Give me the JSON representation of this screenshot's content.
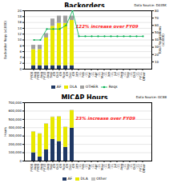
{
  "chart_data": [
    {
      "type": "bar",
      "stacked": true,
      "title": "Backorders",
      "subtitle": "Data Source: D035K",
      "annotations": [
        {
          "text": "122% increase over FY09",
          "color": "#ff2020"
        }
      ],
      "categories": [
        "FY08\nAug",
        "FY09\nAug",
        "FY10\nAug",
        "Sep\n-09",
        "Oct\n-09",
        "Nov\n-09",
        "Dec\n-09",
        "Jan\n-11",
        "Feb\n-11",
        "Mar\n-11",
        "Apr\n-11",
        "May\n-11",
        "Jun\n-11",
        "Jul\n-11",
        "Aug\n-11",
        "Sep\n-11",
        "Oct\n-11",
        "FY11\nOther"
      ],
      "series": [
        {
          "name": "AF",
          "color": "#1f3864",
          "values": [
            1.2,
            1.2,
            1.2,
            1.2,
            1.2,
            1.2,
            1.2,
            0,
            0,
            0,
            0,
            0,
            0,
            0,
            0,
            0,
            0,
            0
          ]
        },
        {
          "name": "DLA",
          "color": "#e8e800",
          "values": [
            5.5,
            5.5,
            9.5,
            13.5,
            14.5,
            14.5,
            15.5,
            0,
            0,
            0,
            0,
            0,
            0,
            0,
            0,
            0,
            0,
            0
          ]
        },
        {
          "name": "OTHER",
          "color": "#a0a0a0",
          "values": [
            1.5,
            1.5,
            1.5,
            2.5,
            2.5,
            2.5,
            1.5,
            0,
            0,
            0,
            0,
            0,
            0,
            0,
            0,
            0,
            0,
            0
          ]
        },
        {
          "name": "Reqs",
          "type": "line",
          "axis": "y2",
          "color": "#00b050",
          "marker": "circle",
          "values": [
            40,
            40,
            55,
            55,
            55,
            60,
            80,
            45,
            45,
            45,
            45,
            45,
            45,
            45,
            45,
            45,
            45,
            45
          ]
        }
      ],
      "ylabel": "Backorder Reqs (x1000)",
      "ylim": [
        0,
        20
      ],
      "yticks": [
        0,
        2,
        4,
        6,
        8,
        10,
        12,
        14,
        16,
        18,
        20
      ],
      "y2label": "Total Requisitions\n(x1000)",
      "y2lim": [
        0,
        80
      ],
      "y2ticks": [
        10,
        20,
        30,
        40,
        50,
        60,
        70,
        80
      ],
      "grid": true,
      "legend": "bottom"
    },
    {
      "type": "bar",
      "stacked": true,
      "title": "MICAP Hours",
      "subtitle": "Data Source: GC88",
      "annotations": [
        {
          "text": "23% increase over FY09",
          "color": "#ff2020"
        }
      ],
      "categories": [
        "FY08\nAug",
        "FY09\nAug",
        "FY10\nAug",
        "Sep\n-09",
        "Oct\n-09",
        "Nov\n-09",
        "Dec\n-09",
        "Jan\n-11",
        "Feb\n-11",
        "Mar\n-11",
        "Apr\n-11",
        "May\n-11",
        "Jun\n-11",
        "Jul\n-11",
        "Aug\n-11",
        "Sep\n-11",
        "Oct\n-11",
        "FY11\nOther"
      ],
      "series": [
        {
          "name": "AF",
          "color": "#1f3864",
          "values": [
            100000,
            50000,
            135000,
            260000,
            235000,
            165000,
            395000,
            0,
            0,
            0,
            0,
            0,
            0,
            0,
            0,
            0,
            0,
            0
          ]
        },
        {
          "name": "DLA",
          "color": "#e8e800",
          "values": [
            250000,
            275000,
            310000,
            265000,
            295000,
            240000,
            210000,
            0,
            0,
            0,
            0,
            0,
            0,
            0,
            0,
            0,
            0,
            0
          ]
        },
        {
          "name": "Other",
          "color": "#c0c0c0",
          "values": [
            5000,
            5000,
            5000,
            5000,
            5000,
            5000,
            5000,
            0,
            0,
            0,
            0,
            0,
            0,
            0,
            0,
            0,
            0,
            0
          ]
        }
      ],
      "ylabel": "Hours",
      "ylim": [
        0,
        700000
      ],
      "yticks": [
        0,
        {
          "value": 100000,
          "label": "100,000"
        },
        {
          "value": 200000,
          "label": "200,000"
        },
        {
          "value": 300000,
          "label": "300,000"
        },
        {
          "value": 400000,
          "label": "400,000"
        },
        {
          "value": 500000,
          "label": "500,000"
        },
        {
          "value": 600000,
          "label": "600,000"
        },
        {
          "value": 700000,
          "label": "700,000"
        }
      ],
      "grid": true,
      "legend": "bottom"
    }
  ]
}
